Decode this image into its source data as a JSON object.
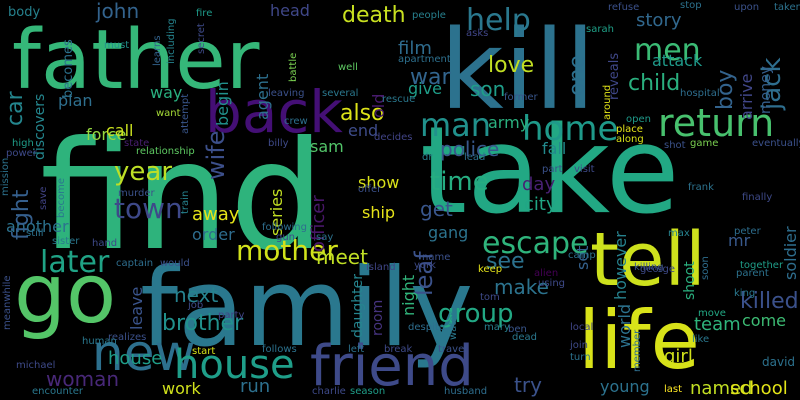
{
  "words": [
    {
      "text": "find",
      "color": "#2eb37c"
    },
    {
      "text": "take",
      "color": "#22a884"
    },
    {
      "text": "family",
      "color": "#2a788e"
    },
    {
      "text": "kill",
      "color": "#2c728e"
    },
    {
      "text": "father",
      "color": "#35b779"
    },
    {
      "text": "life",
      "color": "#d8e219"
    },
    {
      "text": "go",
      "color": "#54c568"
    },
    {
      "text": "tell",
      "color": "#cde11d"
    },
    {
      "text": "friend",
      "color": "#3e4a89"
    },
    {
      "text": "back",
      "color": "#440f75"
    },
    {
      "text": "new",
      "color": "#2d708e"
    },
    {
      "text": "house",
      "color": "#1f9e89"
    },
    {
      "text": "return",
      "color": "#48c16e"
    },
    {
      "text": "home",
      "color": "#1f9a8a"
    },
    {
      "text": "escape",
      "color": "#2fb47c"
    },
    {
      "text": "mother",
      "color": "#d2e21b"
    },
    {
      "text": "man",
      "color": "#21918c"
    },
    {
      "text": "later",
      "color": "#20a386"
    },
    {
      "text": "help",
      "color": "#2a788e"
    },
    {
      "text": "men",
      "color": "#3bbb75"
    },
    {
      "text": "year",
      "color": "#bddf26"
    },
    {
      "text": "town",
      "color": "#3e4989"
    },
    {
      "text": "time",
      "color": "#26ad81"
    },
    {
      "text": "child",
      "color": "#2ab07f"
    },
    {
      "text": "love",
      "color": "#c2df23"
    },
    {
      "text": "woman",
      "color": "#482878"
    },
    {
      "text": "see",
      "color": "#2c728e"
    },
    {
      "text": "get",
      "color": "#39568c"
    },
    {
      "text": "john",
      "color": "#33638d"
    },
    {
      "text": "death",
      "color": "#c8e020"
    },
    {
      "text": "war",
      "color": "#32658e"
    },
    {
      "text": "police",
      "color": "#38588c"
    },
    {
      "text": "group",
      "color": "#22a884"
    },
    {
      "text": "killed",
      "color": "#3b518b"
    },
    {
      "text": "also",
      "color": "#dde318"
    },
    {
      "text": "brother",
      "color": "#21918c"
    },
    {
      "text": "son",
      "color": "#1f9e89"
    },
    {
      "text": "film",
      "color": "#2f6c8e"
    },
    {
      "text": "away",
      "color": "#e5e419"
    },
    {
      "text": "meet",
      "color": "#c0df25"
    },
    {
      "text": "make",
      "color": "#2c738e"
    },
    {
      "text": "try",
      "color": "#3b528b"
    },
    {
      "text": "house",
      "color": "#1f9e89"
    },
    {
      "text": "plan",
      "color": "#2e6f8e"
    },
    {
      "text": "next",
      "color": "#26828e"
    },
    {
      "text": "day",
      "color": "#482173"
    },
    {
      "text": "city",
      "color": "#21a685"
    },
    {
      "text": "story",
      "color": "#31688e"
    },
    {
      "text": "attack",
      "color": "#1f9a8a"
    },
    {
      "text": "run",
      "color": "#2d708e"
    },
    {
      "text": "work",
      "color": "#d0e11c"
    },
    {
      "text": "named",
      "color": "#c2df23"
    },
    {
      "text": "school",
      "color": "#e2e418"
    },
    {
      "text": "girl",
      "color": "#d2e21b"
    },
    {
      "text": "team",
      "color": "#2fb47c"
    },
    {
      "text": "gang",
      "color": "#2c738e"
    },
    {
      "text": "ship",
      "color": "#e7e419"
    },
    {
      "text": "show",
      "color": "#d8e219"
    },
    {
      "text": "army",
      "color": "#2ab07f"
    },
    {
      "text": "fall",
      "color": "#238a8d"
    },
    {
      "text": "another",
      "color": "#2c728e"
    },
    {
      "text": "order",
      "color": "#2e6d8e"
    },
    {
      "text": "force",
      "color": "#95d840"
    },
    {
      "text": "call",
      "color": "#cae11f"
    },
    {
      "text": "way",
      "color": "#29af7f"
    },
    {
      "text": "give",
      "color": "#1f9e89"
    },
    {
      "text": "end",
      "color": "#3e4c8a"
    },
    {
      "text": "sam",
      "color": "#52c569"
    },
    {
      "text": "set",
      "color": "#34618d"
    },
    {
      "text": "mr",
      "color": "#38598c"
    },
    {
      "text": "come",
      "color": "#3dbc74"
    },
    {
      "text": "young",
      "color": "#2c728e"
    },
    {
      "text": "car",
      "color": "#24868e"
    },
    {
      "text": "jack",
      "color": "#2e6e8e"
    },
    {
      "text": "boy",
      "color": "#33638d"
    },
    {
      "text": "one",
      "color": "#2d708e"
    },
    {
      "text": "wife",
      "color": "#3c4f8a"
    },
    {
      "text": "fight",
      "color": "#355f8d"
    },
    {
      "text": "leaf",
      "color": "#3b528b"
    },
    {
      "text": "series",
      "color": "#c2df23"
    },
    {
      "text": "agent",
      "color": "#2d708e"
    },
    {
      "text": "begin",
      "color": "#21918c"
    },
    {
      "text": "old",
      "color": "#481b6d"
    },
    {
      "text": "officer",
      "color": "#481769"
    },
    {
      "text": "daughter",
      "color": "#25848e"
    },
    {
      "text": "room",
      "color": "#46337f"
    },
    {
      "text": "night",
      "color": "#31b57b"
    },
    {
      "text": "leave",
      "color": "#3a548c"
    },
    {
      "text": "shoot",
      "color": "#2ab07f"
    },
    {
      "text": "world",
      "color": "#2c728e"
    },
    {
      "text": "however",
      "color": "#26828e"
    },
    {
      "text": "soldier",
      "color": "#2e6e8e"
    },
    {
      "text": "arrive",
      "color": "#404688"
    },
    {
      "text": "money",
      "color": "#355f8d"
    },
    {
      "text": "reveals",
      "color": "#3f4788"
    },
    {
      "text": "discovers",
      "color": "#24868e"
    },
    {
      "text": "becomes",
      "color": "#2c728e"
    },
    {
      "text": "body",
      "color": "#26828e"
    },
    {
      "text": "head",
      "color": "#3f4788"
    },
    {
      "text": "attempt",
      "color": "#39568c"
    },
    {
      "text": "people",
      "color": "#27808e"
    },
    {
      "text": "fire",
      "color": "#1e9b8a"
    },
    {
      "text": "upon",
      "color": "#3b528b"
    },
    {
      "text": "taken",
      "color": "#2c728e"
    },
    {
      "text": "stop",
      "color": "#2c728e"
    },
    {
      "text": "refuse",
      "color": "#3b518b"
    },
    {
      "text": "sarah",
      "color": "#1fa188"
    },
    {
      "text": "asks",
      "color": "#404688"
    },
    {
      "text": "including",
      "color": "#25848e"
    },
    {
      "text": "learns",
      "color": "#33638d"
    },
    {
      "text": "secret",
      "color": "#3e4a89"
    },
    {
      "text": "must",
      "color": "#21918c"
    },
    {
      "text": "well",
      "color": "#5ec962"
    },
    {
      "text": "battle",
      "color": "#7ad151"
    },
    {
      "text": "apartment",
      "color": "#2d708e"
    },
    {
      "text": "leaving",
      "color": "#3b518b"
    },
    {
      "text": "several",
      "color": "#2a788e"
    },
    {
      "text": "rescue",
      "color": "#2a788e"
    },
    {
      "text": "former",
      "color": "#39568c"
    },
    {
      "text": "around",
      "color": "#e2e418"
    },
    {
      "text": "hospital",
      "color": "#2e6e8e"
    },
    {
      "text": "want",
      "color": "#a5db36"
    },
    {
      "text": "state",
      "color": "#481f70"
    },
    {
      "text": "relationship",
      "color": "#5ec962"
    },
    {
      "text": "billy",
      "color": "#3e4a89"
    },
    {
      "text": "decides",
      "color": "#414487"
    },
    {
      "text": "crew",
      "color": "#2d708e"
    },
    {
      "text": "dr",
      "color": "#27808e"
    },
    {
      "text": "lead",
      "color": "#2e6e8e"
    },
    {
      "text": "part",
      "color": "#3b528b"
    },
    {
      "text": "visit",
      "color": "#3e4a89"
    },
    {
      "text": "open",
      "color": "#1f9a8a"
    },
    {
      "text": "place",
      "color": "#e5e419"
    },
    {
      "text": "along",
      "color": "#d8e219"
    },
    {
      "text": "shot",
      "color": "#3b528b"
    },
    {
      "text": "game",
      "color": "#7ad151"
    },
    {
      "text": "eventually",
      "color": "#3b518b"
    },
    {
      "text": "finally",
      "color": "#3e4a89"
    },
    {
      "text": "frank",
      "color": "#2c728e"
    },
    {
      "text": "peter",
      "color": "#2e6e8e"
    },
    {
      "text": "max",
      "color": "#26828e"
    },
    {
      "text": "together",
      "color": "#1f9e89"
    },
    {
      "text": "parent",
      "color": "#2c728e"
    },
    {
      "text": "george",
      "color": "#3e4a89"
    },
    {
      "text": "camp",
      "color": "#2c728e"
    },
    {
      "text": "soon",
      "color": "#2e6e8e"
    },
    {
      "text": "killing",
      "color": "#3b528b"
    },
    {
      "text": "king",
      "color": "#2a788e"
    },
    {
      "text": "move",
      "color": "#22a884"
    },
    {
      "text": "like",
      "color": "#2a788e"
    },
    {
      "text": "david",
      "color": "#2c728e"
    },
    {
      "text": "last",
      "color": "#fde725"
    },
    {
      "text": "member",
      "color": "#2e6e8e"
    },
    {
      "text": "local",
      "color": "#404688"
    },
    {
      "text": "join",
      "color": "#3e4a89"
    },
    {
      "text": "turn",
      "color": "#2c728e"
    },
    {
      "text": "ben",
      "color": "#39568c"
    },
    {
      "text": "dead",
      "color": "#2a788e"
    },
    {
      "text": "mary",
      "color": "#27808e"
    },
    {
      "text": "tom",
      "color": "#3e4a89"
    },
    {
      "text": "alien",
      "color": "#440154"
    },
    {
      "text": "using",
      "color": "#3e4a89"
    },
    {
      "text": "keep",
      "color": "#e5e419"
    },
    {
      "text": "name",
      "color": "#3b518b"
    },
    {
      "text": "york",
      "color": "#3e4a89"
    },
    {
      "text": "island",
      "color": "#404688"
    },
    {
      "text": "water",
      "color": "#2a788e"
    },
    {
      "text": "despite",
      "color": "#2e6e8e"
    },
    {
      "text": "left",
      "color": "#2c728e"
    },
    {
      "text": "break",
      "color": "#3e4a89"
    },
    {
      "text": "travel",
      "color": "#3b528b"
    },
    {
      "text": "husband",
      "color": "#2e6e8e"
    },
    {
      "text": "season",
      "color": "#1f9e89"
    },
    {
      "text": "charlie",
      "color": "#3e4a89"
    },
    {
      "text": "follows",
      "color": "#2c728e"
    },
    {
      "text": "start",
      "color": "#d8e219"
    },
    {
      "text": "realizes",
      "color": "#3b518b"
    },
    {
      "text": "human",
      "color": "#2a788e"
    },
    {
      "text": "job",
      "color": "#3e4a89"
    },
    {
      "text": "would",
      "color": "#3b518b"
    },
    {
      "text": "captain",
      "color": "#2e6e8e"
    },
    {
      "text": "hand",
      "color": "#3e4a89"
    },
    {
      "text": "sister",
      "color": "#2a788e"
    },
    {
      "text": "still",
      "color": "#2c728e"
    },
    {
      "text": "save",
      "color": "#414487"
    },
    {
      "text": "michael",
      "color": "#3e4a89"
    },
    {
      "text": "encounter",
      "color": "#2a788e"
    },
    {
      "text": "meanwhile",
      "color": "#3b518b"
    },
    {
      "text": "mission",
      "color": "#2c728e"
    },
    {
      "text": "power",
      "color": "#3e4a89"
    },
    {
      "text": "high",
      "color": "#1f9e89"
    },
    {
      "text": "become",
      "color": "#2a788e"
    },
    {
      "text": "murder",
      "color": "#3b528b"
    },
    {
      "text": "train",
      "color": "#26828e"
    },
    {
      "text": "following",
      "color": "#2e6e8e"
    },
    {
      "text": "gun",
      "color": "#3e4a89"
    },
    {
      "text": "say",
      "color": "#2c728e"
    },
    {
      "text": "offer",
      "color": "#3b518b"
    },
    {
      "text": "party",
      "color": "#414487"
    },
    {
      "text": "joe",
      "color": "#d8e219"
    }
  ]
}
